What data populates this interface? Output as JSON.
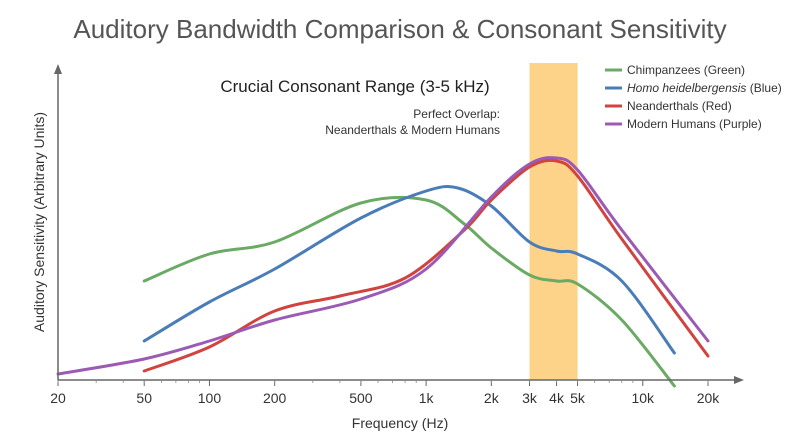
{
  "chart_data": {
    "type": "line",
    "title": "Auditory Bandwidth Comparison & Consonant Sensitivity",
    "xlabel": "Frequency (Hz)",
    "ylabel": "Auditory Sensitivity (Arbitrary Units)",
    "x_scale": "log",
    "xlim": [
      20,
      20000
    ],
    "ylim": [
      0,
      100
    ],
    "x_ticks": [
      {
        "value": 20,
        "label": "20"
      },
      {
        "value": 50,
        "label": "50"
      },
      {
        "value": 100,
        "label": "100"
      },
      {
        "value": 200,
        "label": "200"
      },
      {
        "value": 500,
        "label": "500"
      },
      {
        "value": 1000,
        "label": "1k"
      },
      {
        "value": 2000,
        "label": "2k"
      },
      {
        "value": 3000,
        "label": "3k"
      },
      {
        "value": 4000,
        "label": "4k"
      },
      {
        "value": 5000,
        "label": "5k"
      },
      {
        "value": 10000,
        "label": "10k"
      },
      {
        "value": 20000,
        "label": "20k"
      }
    ],
    "highlight_band": {
      "x_start": 3000,
      "x_end": 5000,
      "color": "#fdd38a",
      "label": "Crucial Consonant Range (3-5 kHz)"
    },
    "annotations": [
      "Perfect Overlap:",
      "Neanderthals & Modern Humans"
    ],
    "legend_position": "top-right",
    "grid": false,
    "series": [
      {
        "name": "Chimpanzees (Green)",
        "color": "#6aaa64",
        "x": [
          50,
          100,
          200,
          500,
          1000,
          1500,
          2000,
          3000,
          4000,
          5000,
          8000,
          14000
        ],
        "y": [
          33,
          42,
          46,
          59,
          60,
          52,
          44,
          35,
          33,
          32,
          20,
          -2
        ]
      },
      {
        "name": "Homo heidelbergensis (Blue)",
        "name_parts": [
          "Homo heidelbergensis",
          " (Blue)"
        ],
        "color": "#4a7db8",
        "x": [
          50,
          100,
          200,
          500,
          1000,
          1400,
          2000,
          3000,
          4000,
          5000,
          8000,
          14000
        ],
        "y": [
          13,
          26,
          37,
          54,
          63,
          64,
          58,
          46,
          43,
          42,
          33,
          9
        ]
      },
      {
        "name": "Neanderthals (Red)",
        "color": "#d0433e",
        "x": [
          50,
          100,
          200,
          400,
          800,
          1500,
          2000,
          3000,
          4000,
          5000,
          8000,
          20000
        ],
        "y": [
          3,
          11,
          23,
          28,
          34,
          50,
          60,
          71,
          73,
          68,
          47,
          8
        ]
      },
      {
        "name": "Modern Humans (Purple)",
        "color": "#9b5bb5",
        "x": [
          20,
          50,
          100,
          200,
          500,
          1000,
          2000,
          3000,
          4000,
          5000,
          8000,
          20000
        ],
        "y": [
          2,
          7,
          13,
          20,
          27,
          37,
          61,
          72,
          74,
          70,
          50,
          13
        ]
      }
    ]
  }
}
